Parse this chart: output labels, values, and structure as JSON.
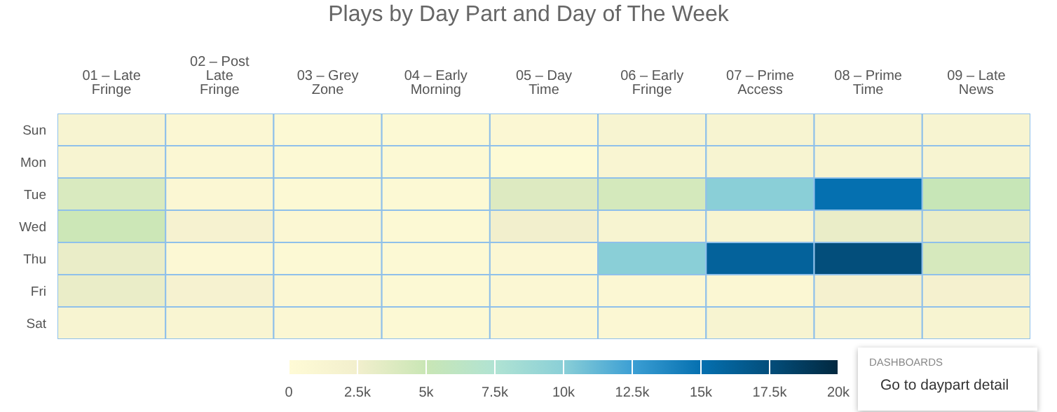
{
  "chart_data": {
    "type": "heatmap",
    "title": "Plays by Day Part and Day of The Week",
    "categories": [
      "01 – Late Fringe",
      "02 – Post Late Fringe",
      "03 – Grey Zone",
      "04 – Early Morning",
      "05 – Day Time",
      "06 – Early Fringe",
      "07 – Prime Access",
      "08 – Prime Time",
      "09 – Late News"
    ],
    "y_categories": [
      "Sun",
      "Mon",
      "Tue",
      "Wed",
      "Thu",
      "Fri",
      "Sat"
    ],
    "cells": [
      [
        1500,
        800,
        500,
        500,
        800,
        1500,
        1500,
        1500,
        1500
      ],
      [
        1500,
        800,
        500,
        500,
        300,
        1200,
        1500,
        1500,
        1500
      ],
      [
        4000,
        800,
        500,
        500,
        3800,
        4300,
        10000,
        15000,
        5200
      ],
      [
        4800,
        1800,
        800,
        500,
        2500,
        1500,
        1500,
        3000,
        3000
      ],
      [
        3000,
        600,
        500,
        500,
        800,
        10000,
        16000,
        17500,
        4200
      ],
      [
        3000,
        1800,
        800,
        500,
        800,
        800,
        800,
        2000,
        2000
      ],
      [
        1500,
        1200,
        800,
        500,
        800,
        800,
        1500,
        1500,
        1500
      ]
    ],
    "clim": [
      0,
      20000
    ],
    "cticks": [
      0,
      {
        "value": 2500,
        "label": "2.5k"
      },
      {
        "value": 5000,
        "label": "5k"
      },
      {
        "value": 7500,
        "label": "7.5k"
      },
      {
        "value": 10000,
        "label": "10k"
      },
      {
        "value": 12500,
        "label": "12.5k"
      },
      {
        "value": 15000,
        "label": "15k"
      },
      {
        "value": 17500,
        "label": "17.5k"
      },
      {
        "value": 20000,
        "label": "20k"
      }
    ],
    "annotations": [
      "DASHBOARDS",
      "Go to daypart detail"
    ]
  }
}
